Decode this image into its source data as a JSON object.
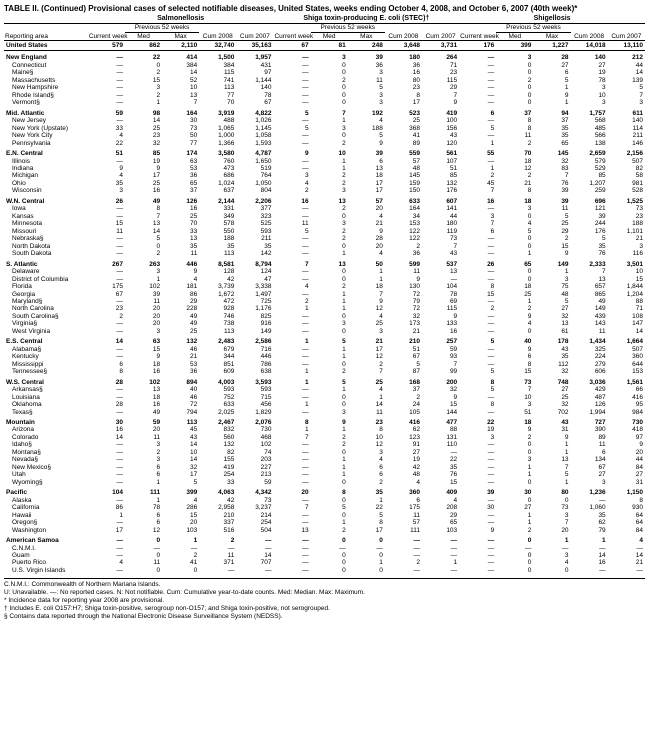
{
  "title": "TABLE II. (Continued) Provisional cases of selected notifiable diseases, United States, weeks ending October 4, 2008, and October 6, 2007 (40th week)*",
  "diseases": [
    "Salmonellosis",
    "Shiga toxin-producing E. coli (STEC)†",
    "Shigellosis"
  ],
  "col_groups": {
    "current": "Current week",
    "prev": "Previous 52 weeks",
    "med": "Med",
    "max": "Max",
    "cum08": "Cum 2008",
    "cum07": "Cum 2007"
  },
  "area_header": "Reporting area",
  "footnotes": [
    "C.N.M.I.: Commonwealth of Northern Mariana Islands.",
    "U: Unavailable.   —: No reported cases.   N: Not notifiable.   Cum: Cumulative year-to-date counts.   Med: Median.   Max: Maximum.",
    "* Incidence data for reporting year 2008 are provisional.",
    "† Includes E. coli O157:H7; Shiga toxin-positive, serogroup non-O157; and Shiga toxin-positive, not serogrouped.",
    "§ Contains data reported through the National Electronic Disease Surveillance System (NEDSS)."
  ],
  "rows": [
    {
      "r": 1,
      "a": "United States",
      "v": [
        "579",
        "862",
        "2,110",
        "32,740",
        "35,163",
        "67",
        "81",
        "248",
        "3,648",
        "3,731",
        "176",
        "399",
        "1,227",
        "14,018",
        "13,110"
      ]
    },
    {
      "r": 1,
      "a": "New England",
      "v": [
        "—",
        "22",
        "414",
        "1,500",
        "1,957",
        "—",
        "3",
        "39",
        "180",
        "264",
        "—",
        "3",
        "28",
        "140",
        "212"
      ]
    },
    {
      "a": "Connecticut",
      "v": [
        "—",
        "0",
        "384",
        "384",
        "431",
        "—",
        "0",
        "36",
        "36",
        "71",
        "—",
        "0",
        "27",
        "27",
        "44"
      ]
    },
    {
      "a": "Maine§",
      "v": [
        "—",
        "2",
        "14",
        "115",
        "97",
        "—",
        "0",
        "3",
        "16",
        "23",
        "—",
        "0",
        "6",
        "19",
        "14"
      ]
    },
    {
      "a": "Massachusetts",
      "v": [
        "—",
        "15",
        "52",
        "741",
        "1,144",
        "—",
        "2",
        "11",
        "80",
        "115",
        "—",
        "2",
        "5",
        "78",
        "139"
      ]
    },
    {
      "a": "New Hampshire",
      "v": [
        "—",
        "3",
        "10",
        "113",
        "140",
        "—",
        "0",
        "5",
        "23",
        "29",
        "—",
        "0",
        "1",
        "3",
        "5"
      ]
    },
    {
      "a": "Rhode Island§",
      "v": [
        "—",
        "2",
        "13",
        "77",
        "78",
        "—",
        "0",
        "3",
        "8",
        "7",
        "—",
        "0",
        "9",
        "10",
        "7"
      ]
    },
    {
      "a": "Vermont§",
      "v": [
        "—",
        "1",
        "7",
        "70",
        "67",
        "—",
        "0",
        "3",
        "17",
        "9",
        "—",
        "0",
        "1",
        "3",
        "3"
      ]
    },
    {
      "r": 1,
      "a": "Mid. Atlantic",
      "v": [
        "59",
        "98",
        "164",
        "3,919",
        "4,822",
        "5",
        "7",
        "192",
        "523",
        "419",
        "6",
        "37",
        "94",
        "1,757",
        "611"
      ]
    },
    {
      "a": "New Jersey",
      "v": [
        "—",
        "14",
        "30",
        "488",
        "1,026",
        "—",
        "1",
        "4",
        "25",
        "100",
        "—",
        "8",
        "37",
        "568",
        "140"
      ]
    },
    {
      "a": "New York (Upstate)",
      "v": [
        "33",
        "25",
        "73",
        "1,065",
        "1,145",
        "5",
        "3",
        "188",
        "368",
        "156",
        "5",
        "8",
        "35",
        "485",
        "114"
      ]
    },
    {
      "a": "New York City",
      "v": [
        "4",
        "23",
        "50",
        "1,000",
        "1,058",
        "—",
        "0",
        "5",
        "41",
        "43",
        "—",
        "11",
        "35",
        "566",
        "211"
      ]
    },
    {
      "a": "Pennsylvania",
      "v": [
        "22",
        "32",
        "77",
        "1,366",
        "1,593",
        "—",
        "2",
        "9",
        "89",
        "120",
        "1",
        "2",
        "65",
        "138",
        "146"
      ]
    },
    {
      "r": 1,
      "a": "E.N. Central",
      "v": [
        "51",
        "85",
        "174",
        "3,580",
        "4,787",
        "9",
        "10",
        "39",
        "559",
        "561",
        "55",
        "70",
        "145",
        "2,659",
        "2,156"
      ]
    },
    {
      "a": "Illinois",
      "v": [
        "—",
        "19",
        "63",
        "760",
        "1,650",
        "—",
        "1",
        "6",
        "57",
        "107",
        "—",
        "18",
        "32",
        "579",
        "507"
      ]
    },
    {
      "a": "Indiana",
      "v": [
        "9",
        "9",
        "53",
        "473",
        "519",
        "—",
        "1",
        "13",
        "48",
        "51",
        "1",
        "12",
        "83",
        "529",
        "82"
      ]
    },
    {
      "a": "Michigan",
      "v": [
        "4",
        "17",
        "36",
        "686",
        "764",
        "3",
        "2",
        "18",
        "145",
        "85",
        "2",
        "2",
        "7",
        "85",
        "58"
      ]
    },
    {
      "a": "Ohio",
      "v": [
        "35",
        "25",
        "65",
        "1,024",
        "1,050",
        "4",
        "2",
        "17",
        "159",
        "132",
        "45",
        "21",
        "76",
        "1,207",
        "981"
      ]
    },
    {
      "a": "Wisconsin",
      "v": [
        "3",
        "16",
        "37",
        "637",
        "804",
        "2",
        "3",
        "17",
        "150",
        "176",
        "7",
        "8",
        "39",
        "259",
        "528"
      ]
    },
    {
      "r": 1,
      "a": "W.N. Central",
      "v": [
        "26",
        "49",
        "126",
        "2,144",
        "2,206",
        "16",
        "13",
        "57",
        "633",
        "607",
        "16",
        "18",
        "39",
        "696",
        "1,525"
      ]
    },
    {
      "a": "Iowa",
      "v": [
        "—",
        "8",
        "16",
        "331",
        "377",
        "—",
        "2",
        "20",
        "164",
        "141",
        "—",
        "3",
        "11",
        "121",
        "73"
      ]
    },
    {
      "a": "Kansas",
      "v": [
        "—",
        "7",
        "25",
        "349",
        "323",
        "—",
        "0",
        "4",
        "34",
        "44",
        "3",
        "0",
        "5",
        "39",
        "23"
      ]
    },
    {
      "a": "Minnesota",
      "v": [
        "15",
        "13",
        "70",
        "578",
        "525",
        "11",
        "3",
        "21",
        "153",
        "180",
        "7",
        "4",
        "25",
        "244",
        "188"
      ]
    },
    {
      "a": "Missouri",
      "v": [
        "11",
        "14",
        "33",
        "550",
        "593",
        "5",
        "2",
        "9",
        "122",
        "119",
        "6",
        "5",
        "29",
        "176",
        "1,101"
      ]
    },
    {
      "a": "Nebraska§",
      "v": [
        "—",
        "5",
        "13",
        "188",
        "211",
        "—",
        "2",
        "28",
        "122",
        "73",
        "—",
        "0",
        "2",
        "5",
        "21"
      ]
    },
    {
      "a": "North Dakota",
      "v": [
        "—",
        "0",
        "35",
        "35",
        "35",
        "—",
        "0",
        "20",
        "2",
        "7",
        "—",
        "0",
        "15",
        "35",
        "3"
      ]
    },
    {
      "a": "South Dakota",
      "v": [
        "—",
        "2",
        "11",
        "113",
        "142",
        "—",
        "1",
        "4",
        "36",
        "43",
        "—",
        "1",
        "9",
        "76",
        "116"
      ]
    },
    {
      "r": 1,
      "a": "S. Atlantic",
      "v": [
        "267",
        "263",
        "446",
        "8,581",
        "8,794",
        "7",
        "13",
        "50",
        "599",
        "537",
        "26",
        "65",
        "149",
        "2,333",
        "3,501"
      ]
    },
    {
      "a": "Delaware",
      "v": [
        "—",
        "3",
        "9",
        "128",
        "124",
        "—",
        "0",
        "1",
        "11",
        "13",
        "—",
        "0",
        "1",
        "7",
        "10"
      ]
    },
    {
      "a": "District of Columbia",
      "v": [
        "—",
        "1",
        "4",
        "42",
        "47",
        "—",
        "0",
        "1",
        "9",
        "—",
        "—",
        "0",
        "3",
        "13",
        "15"
      ]
    },
    {
      "a": "Florida",
      "v": [
        "175",
        "102",
        "181",
        "3,739",
        "3,338",
        "4",
        "2",
        "18",
        "130",
        "104",
        "8",
        "18",
        "75",
        "657",
        "1,844"
      ]
    },
    {
      "a": "Georgia",
      "v": [
        "67",
        "39",
        "86",
        "1,672",
        "1,497",
        "—",
        "1",
        "7",
        "72",
        "78",
        "15",
        "25",
        "48",
        "865",
        "1,204"
      ]
    },
    {
      "a": "Maryland§",
      "v": [
        "—",
        "11",
        "29",
        "472",
        "725",
        "2",
        "1",
        "9",
        "79",
        "69",
        "—",
        "1",
        "5",
        "49",
        "88"
      ]
    },
    {
      "a": "North Carolina",
      "v": [
        "23",
        "20",
        "228",
        "928",
        "1,176",
        "1",
        "1",
        "12",
        "72",
        "115",
        "2",
        "2",
        "27",
        "149",
        "71"
      ]
    },
    {
      "a": "South Carolina§",
      "v": [
        "2",
        "20",
        "49",
        "746",
        "825",
        "—",
        "0",
        "4",
        "32",
        "9",
        "—",
        "9",
        "32",
        "439",
        "108"
      ]
    },
    {
      "a": "Virginia§",
      "v": [
        "—",
        "20",
        "49",
        "738",
        "916",
        "—",
        "3",
        "25",
        "173",
        "133",
        "—",
        "4",
        "13",
        "143",
        "147"
      ]
    },
    {
      "a": "West Virginia",
      "v": [
        "—",
        "3",
        "25",
        "113",
        "149",
        "—",
        "0",
        "3",
        "21",
        "16",
        "—",
        "0",
        "61",
        "11",
        "14"
      ]
    },
    {
      "r": 1,
      "a": "E.S. Central",
      "v": [
        "14",
        "63",
        "132",
        "2,483",
        "2,586",
        "1",
        "5",
        "21",
        "210",
        "257",
        "5",
        "40",
        "178",
        "1,434",
        "1,664"
      ]
    },
    {
      "a": "Alabama§",
      "v": [
        "—",
        "15",
        "46",
        "679",
        "716",
        "—",
        "1",
        "17",
        "51",
        "59",
        "—",
        "9",
        "43",
        "325",
        "507"
      ]
    },
    {
      "a": "Kentucky",
      "v": [
        "—",
        "9",
        "21",
        "344",
        "446",
        "—",
        "1",
        "12",
        "67",
        "93",
        "—",
        "6",
        "35",
        "224",
        "360"
      ]
    },
    {
      "a": "Mississippi",
      "v": [
        "6",
        "18",
        "53",
        "851",
        "786",
        "—",
        "0",
        "2",
        "5",
        "7",
        "—",
        "8",
        "112",
        "279",
        "644"
      ]
    },
    {
      "a": "Tennessee§",
      "v": [
        "8",
        "16",
        "36",
        "609",
        "638",
        "1",
        "2",
        "7",
        "87",
        "99",
        "5",
        "15",
        "32",
        "606",
        "153"
      ]
    },
    {
      "r": 1,
      "a": "W.S. Central",
      "v": [
        "28",
        "102",
        "894",
        "4,003",
        "3,593",
        "1",
        "5",
        "25",
        "168",
        "200",
        "8",
        "73",
        "748",
        "3,036",
        "1,561"
      ]
    },
    {
      "a": "Arkansas§",
      "v": [
        "—",
        "13",
        "40",
        "593",
        "593",
        "—",
        "1",
        "4",
        "37",
        "32",
        "5",
        "7",
        "27",
        "429",
        "66"
      ]
    },
    {
      "a": "Louisiana",
      "v": [
        "—",
        "18",
        "46",
        "752",
        "715",
        "—",
        "0",
        "1",
        "2",
        "9",
        "—",
        "10",
        "25",
        "487",
        "416"
      ]
    },
    {
      "a": "Oklahoma",
      "v": [
        "28",
        "16",
        "72",
        "633",
        "456",
        "1",
        "0",
        "14",
        "24",
        "15",
        "8",
        "3",
        "32",
        "126",
        "95"
      ]
    },
    {
      "a": "Texas§",
      "v": [
        "—",
        "49",
        "794",
        "2,025",
        "1,829",
        "—",
        "3",
        "11",
        "105",
        "144",
        "—",
        "51",
        "702",
        "1,994",
        "984"
      ]
    },
    {
      "r": 1,
      "a": "Mountain",
      "v": [
        "30",
        "59",
        "113",
        "2,467",
        "2,076",
        "8",
        "9",
        "23",
        "416",
        "477",
        "22",
        "18",
        "43",
        "727",
        "730"
      ]
    },
    {
      "a": "Arizona",
      "v": [
        "16",
        "20",
        "45",
        "832",
        "730",
        "1",
        "1",
        "8",
        "62",
        "88",
        "19",
        "9",
        "31",
        "390",
        "418"
      ]
    },
    {
      "a": "Colorado",
      "v": [
        "14",
        "11",
        "43",
        "560",
        "468",
        "7",
        "2",
        "10",
        "123",
        "131",
        "3",
        "2",
        "9",
        "89",
        "97"
      ]
    },
    {
      "a": "Idaho§",
      "v": [
        "—",
        "3",
        "14",
        "132",
        "102",
        "—",
        "2",
        "12",
        "91",
        "110",
        "—",
        "0",
        "1",
        "11",
        "9"
      ]
    },
    {
      "a": "Montana§",
      "v": [
        "—",
        "2",
        "10",
        "82",
        "74",
        "—",
        "0",
        "3",
        "27",
        "—",
        "—",
        "0",
        "1",
        "6",
        "20"
      ]
    },
    {
      "a": "Nevada§",
      "v": [
        "—",
        "3",
        "14",
        "155",
        "203",
        "—",
        "1",
        "4",
        "19",
        "22",
        "—",
        "3",
        "13",
        "134",
        "44"
      ]
    },
    {
      "a": "New Mexico§",
      "v": [
        "—",
        "6",
        "32",
        "419",
        "227",
        "—",
        "1",
        "6",
        "42",
        "35",
        "—",
        "1",
        "7",
        "67",
        "84"
      ]
    },
    {
      "a": "Utah",
      "v": [
        "—",
        "6",
        "17",
        "254",
        "213",
        "—",
        "1",
        "6",
        "48",
        "76",
        "—",
        "1",
        "5",
        "27",
        "27"
      ]
    },
    {
      "a": "Wyoming§",
      "v": [
        "—",
        "1",
        "5",
        "33",
        "59",
        "—",
        "0",
        "2",
        "4",
        "15",
        "—",
        "0",
        "1",
        "3",
        "31"
      ]
    },
    {
      "r": 1,
      "a": "Pacific",
      "v": [
        "104",
        "111",
        "399",
        "4,063",
        "4,342",
        "20",
        "8",
        "35",
        "360",
        "409",
        "39",
        "30",
        "80",
        "1,236",
        "1,150"
      ]
    },
    {
      "a": "Alaska",
      "v": [
        "—",
        "1",
        "4",
        "42",
        "73",
        "—",
        "0",
        "1",
        "6",
        "4",
        "—",
        "0",
        "0",
        "—",
        "8"
      ]
    },
    {
      "a": "California",
      "v": [
        "86",
        "78",
        "286",
        "2,958",
        "3,237",
        "7",
        "5",
        "22",
        "175",
        "208",
        "30",
        "27",
        "73",
        "1,060",
        "930"
      ]
    },
    {
      "a": "Hawaii",
      "v": [
        "1",
        "6",
        "15",
        "210",
        "214",
        "—",
        "0",
        "5",
        "11",
        "29",
        "—",
        "1",
        "3",
        "35",
        "64"
      ]
    },
    {
      "a": "Oregon§",
      "v": [
        "—",
        "6",
        "20",
        "337",
        "254",
        "—",
        "1",
        "8",
        "57",
        "65",
        "—",
        "1",
        "7",
        "62",
        "64"
      ]
    },
    {
      "a": "Washington",
      "v": [
        "17",
        "12",
        "103",
        "516",
        "504",
        "13",
        "2",
        "17",
        "111",
        "103",
        "9",
        "2",
        "20",
        "79",
        "84"
      ]
    },
    {
      "r": 1,
      "a": "American Samoa",
      "v": [
        "—",
        "0",
        "1",
        "2",
        "—",
        "—",
        "0",
        "0",
        "—",
        "—",
        "—",
        "0",
        "1",
        "1",
        "4"
      ]
    },
    {
      "a": "C.N.M.I.",
      "v": [
        "—",
        "—",
        "—",
        "—",
        "—",
        "—",
        "—",
        "—",
        "—",
        "—",
        "—",
        "—",
        "—",
        "—",
        "—"
      ]
    },
    {
      "a": "Guam",
      "v": [
        "—",
        "0",
        "2",
        "11",
        "14",
        "—",
        "0",
        "0",
        "—",
        "—",
        "—",
        "0",
        "3",
        "14",
        "14"
      ]
    },
    {
      "a": "Puerto Rico",
      "v": [
        "4",
        "11",
        "41",
        "371",
        "707",
        "—",
        "0",
        "1",
        "2",
        "1",
        "—",
        "0",
        "4",
        "16",
        "21"
      ]
    },
    {
      "a": "U.S. Virgin Islands",
      "v": [
        "—",
        "0",
        "0",
        "—",
        "—",
        "—",
        "0",
        "0",
        "—",
        "—",
        "—",
        "0",
        "0",
        "—",
        "—"
      ]
    }
  ]
}
